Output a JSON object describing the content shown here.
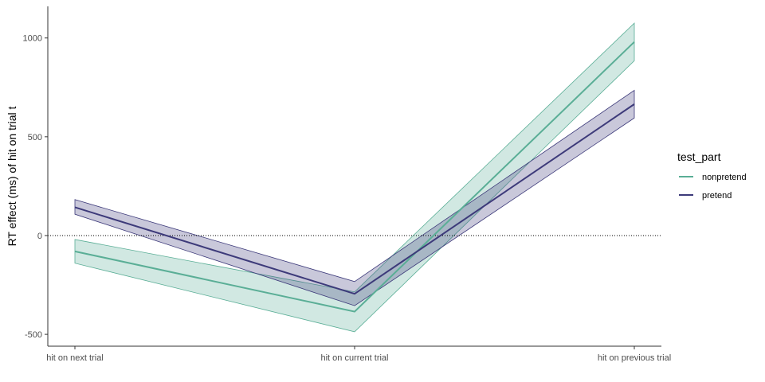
{
  "chart_data": {
    "type": "line",
    "title": "",
    "xlabel": "",
    "ylabel": "RT effect (ms) of hit on trial t",
    "categories": [
      "hit on next trial",
      "hit on current trial",
      "hit on previous trial"
    ],
    "ylim": [
      -560,
      1160
    ],
    "yticks": [
      -500,
      0,
      500,
      1000
    ],
    "reference_line": {
      "y": 0,
      "style": "dotted"
    },
    "grid": false,
    "legend": {
      "title": "test_part",
      "position": "right"
    },
    "series": [
      {
        "name": "nonpretend",
        "color": "#5aae96",
        "fill": "#5aae96",
        "values": [
          -80,
          -385,
          980
        ],
        "lower": [
          -140,
          -487,
          885
        ],
        "upper": [
          -20,
          -285,
          1075
        ]
      },
      {
        "name": "pretend",
        "color": "#3d3a7a",
        "fill": "#3d3a7a",
        "values": [
          143,
          -295,
          665
        ],
        "lower": [
          108,
          -355,
          595
        ],
        "upper": [
          182,
          -233,
          735
        ]
      }
    ]
  }
}
